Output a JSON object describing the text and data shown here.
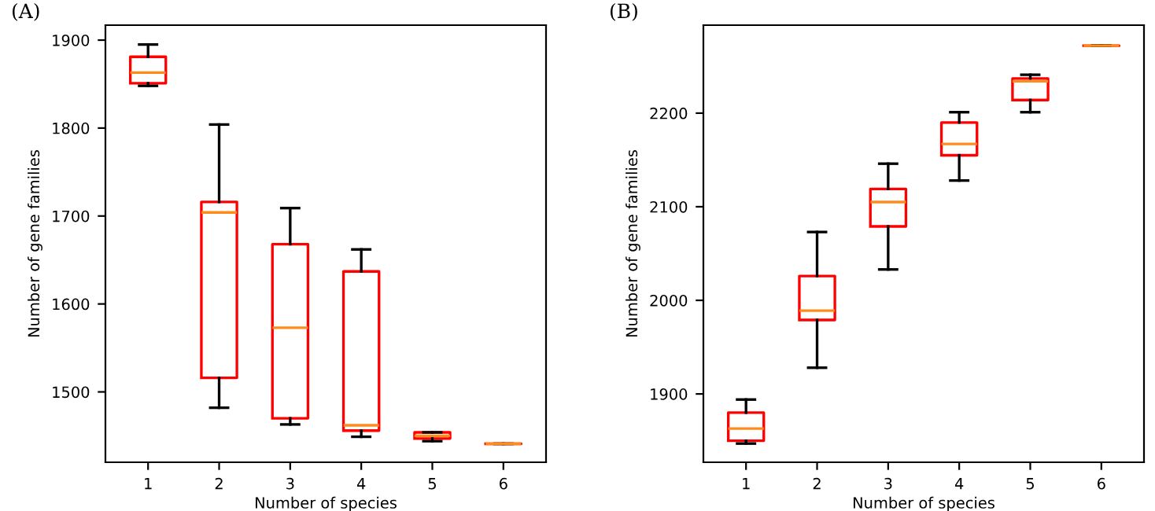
{
  "chart_data": [
    {
      "type": "box",
      "title": "(A)",
      "xlabel": "Number of species",
      "ylabel": "Number of gene families",
      "categories": [
        "1",
        "2",
        "3",
        "4",
        "5",
        "6"
      ],
      "color": "#ff0000",
      "ylim": [
        1420,
        1917
      ],
      "yticks": [
        1500,
        1600,
        1700,
        1800,
        1900
      ],
      "grid": false,
      "boxes": [
        {
          "low": 1848,
          "q1": 1851,
          "median": 1863,
          "q3": 1881,
          "high": 1895
        },
        {
          "low": 1482,
          "q1": 1516,
          "median": 1704,
          "q3": 1716,
          "high": 1804
        },
        {
          "low": 1463,
          "q1": 1470,
          "median": 1573,
          "q3": 1668,
          "high": 1709
        },
        {
          "low": 1449,
          "q1": 1456,
          "median": 1462,
          "q3": 1637,
          "high": 1662
        },
        {
          "low": 1444,
          "q1": 1447,
          "median": 1450,
          "q3": 1454,
          "high": 1454
        },
        {
          "low": 1441,
          "q1": 1441,
          "median": 1441,
          "q3": 1441,
          "high": 1441
        }
      ]
    },
    {
      "type": "box",
      "title": "(B)",
      "xlabel": "Number of species",
      "ylabel": "Number of gene families",
      "categories": [
        "1",
        "2",
        "3",
        "4",
        "5",
        "6"
      ],
      "color": "#ff0000",
      "ylim": [
        1827,
        2294
      ],
      "yticks": [
        1900,
        2000,
        2100,
        2200
      ],
      "grid": false,
      "boxes": [
        {
          "low": 1847,
          "q1": 1850,
          "median": 1863,
          "q3": 1880,
          "high": 1894
        },
        {
          "low": 1928,
          "q1": 1979,
          "median": 1989,
          "q3": 2026,
          "high": 2073
        },
        {
          "low": 2033,
          "q1": 2079,
          "median": 2105,
          "q3": 2119,
          "high": 2146
        },
        {
          "low": 2128,
          "q1": 2155,
          "median": 2167,
          "q3": 2190,
          "high": 2201
        },
        {
          "low": 2201,
          "q1": 2214,
          "median": 2234,
          "q3": 2237,
          "high": 2241
        },
        {
          "low": 2272,
          "q1": 2272,
          "median": 2272,
          "q3": 2272,
          "high": 2272
        }
      ]
    }
  ]
}
